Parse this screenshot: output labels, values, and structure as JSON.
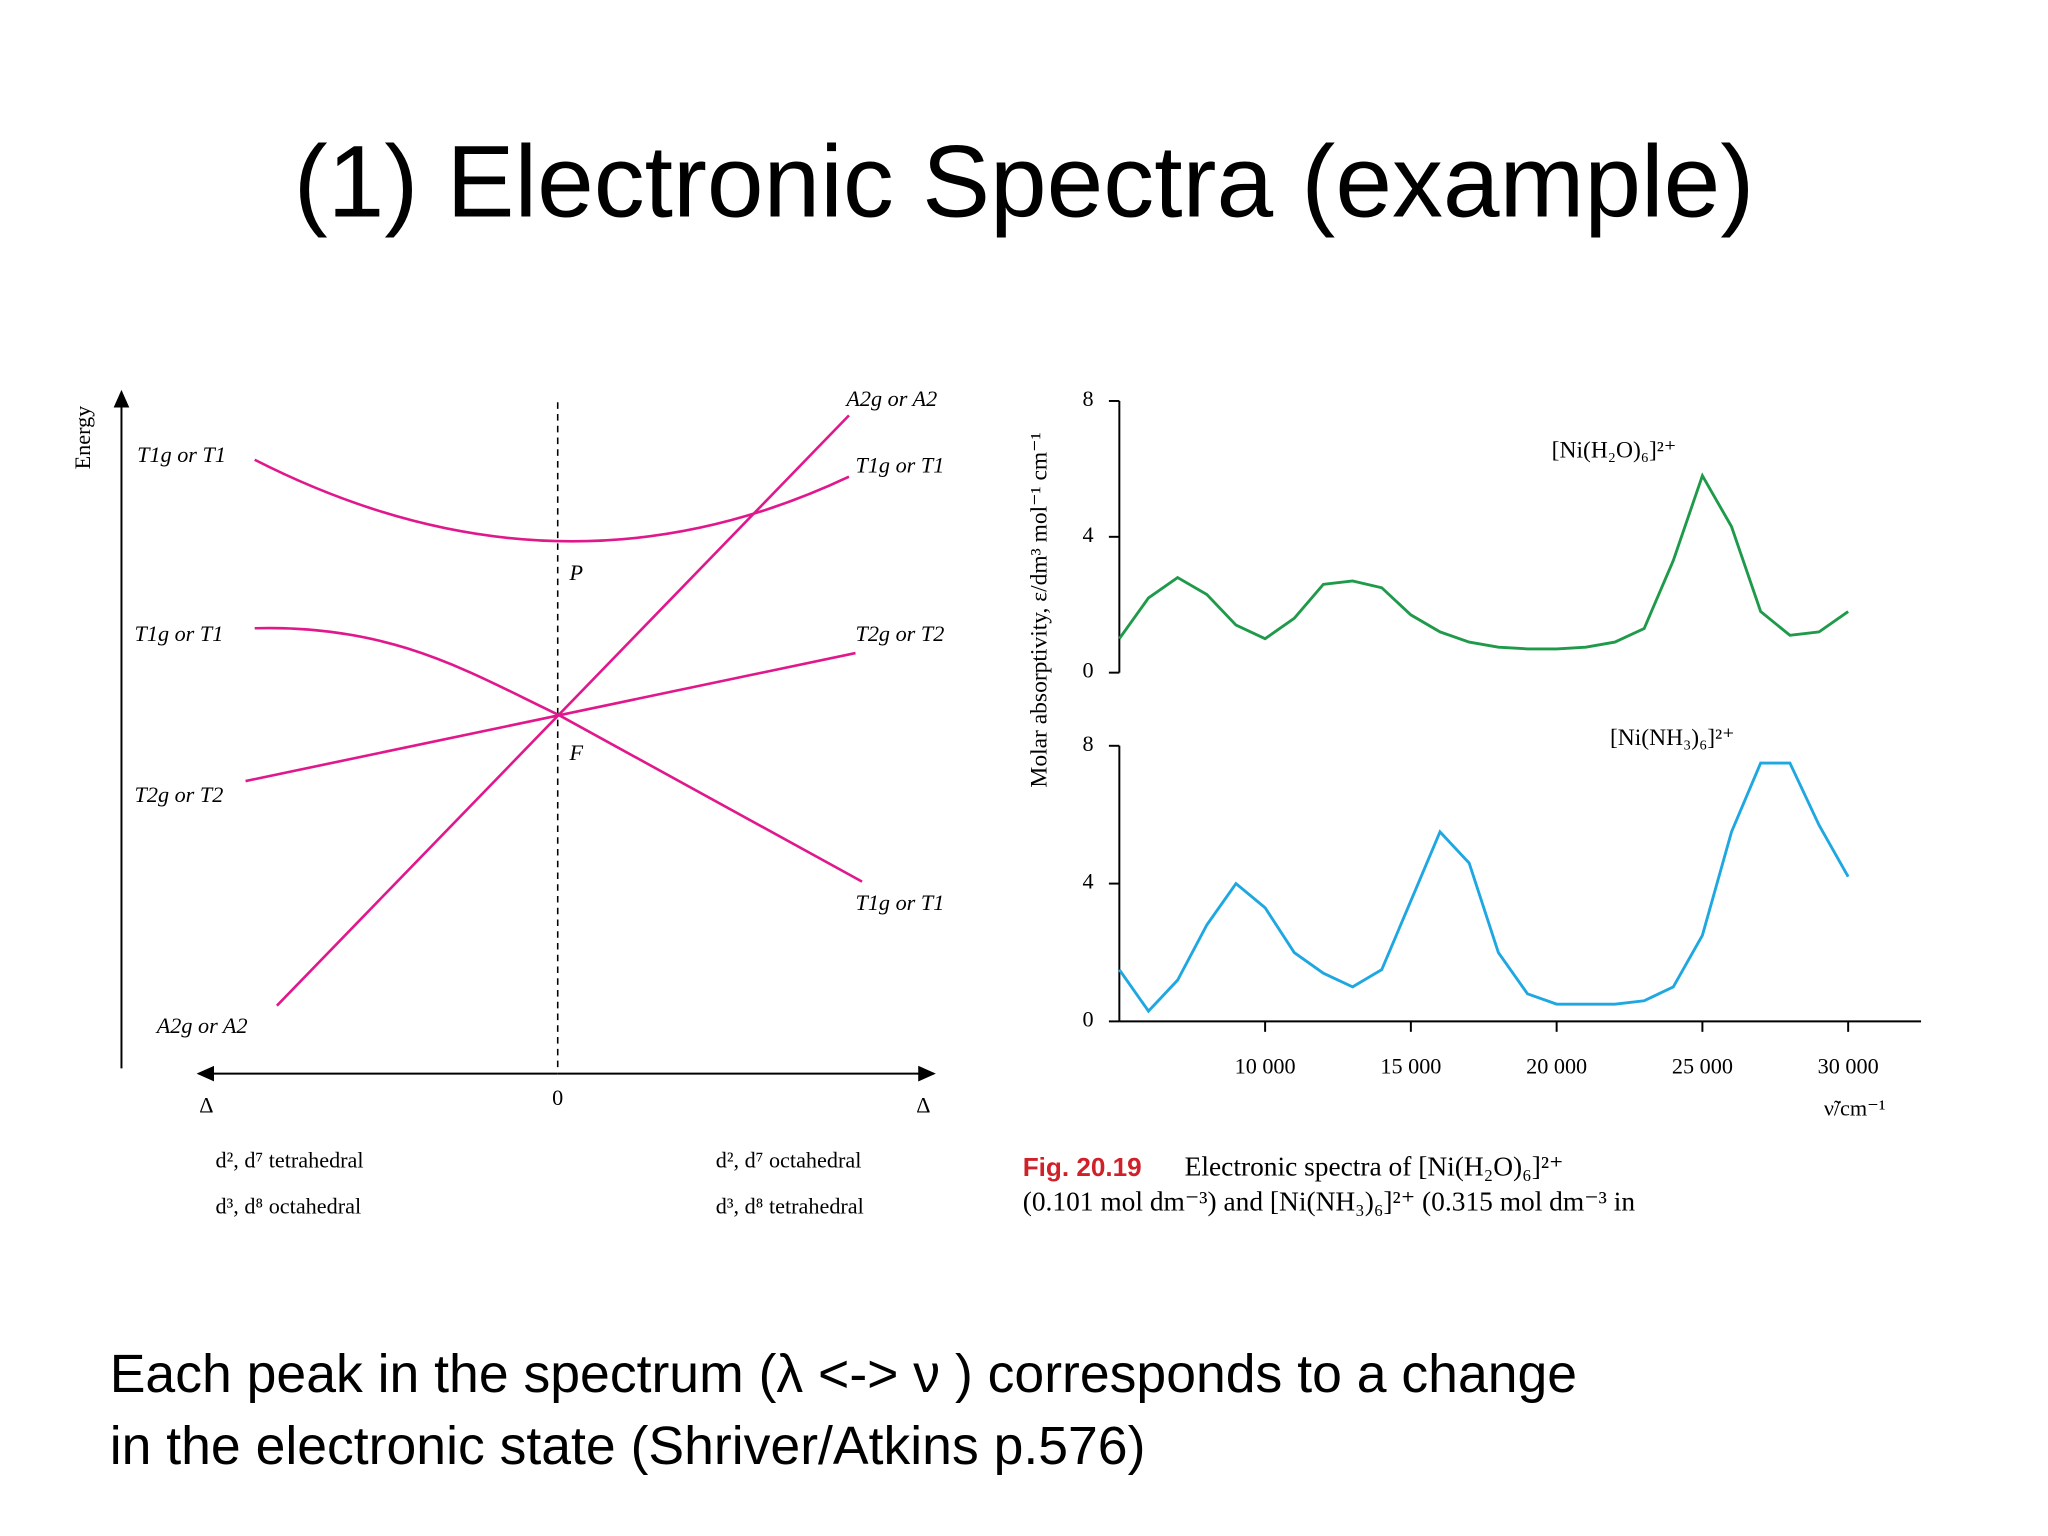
{
  "slide": {
    "title": "(1) Electronic Spectra (example)",
    "body": [
      "Each peak in the spectrum (λ  <-> ν ) corresponds to a change",
      "in the electronic state (Shriver/Atkins p.576)"
    ]
  },
  "orgel_diagram": {
    "y_label": "Energy",
    "left_labels": [
      "T1g or T1",
      "T1g or T1",
      "T2g or T2",
      "A2g or A2"
    ],
    "right_labels": [
      "A2g or A2",
      "T1g or T1",
      "T2g or T2",
      "T1g or T1"
    ],
    "terms": [
      "P",
      "F"
    ],
    "axis_labels": [
      "Δ",
      "0",
      "Δ"
    ],
    "left_cases": [
      "d², d⁷  tetrahedral",
      "d³, d⁸  octahedral"
    ],
    "right_cases": [
      "d², d⁷  octahedral",
      "d³, d⁸  tetrahedral"
    ]
  },
  "caption": {
    "label": "Fig. 20.19",
    "lines": [
      "Electronic spectra of [Ni(H₂O)₆]²⁺",
      "(0.101 mol dm⁻³) and [Ni(NH₃)₆]²⁺ (0.315 mol dm⁻³ in"
    ]
  },
  "chart_data": [
    {
      "type": "line",
      "y_label": "Molar absorptivity, ε/dm³ mol⁻¹ cm⁻¹",
      "x": [
        5000,
        6000,
        7000,
        8000,
        9000,
        10000,
        11000,
        12000,
        13000,
        14000,
        15000,
        16000,
        17000,
        18000,
        19000,
        20000,
        21000,
        22000,
        23000,
        24000,
        25000,
        26000,
        27000,
        28000,
        29000,
        30000
      ],
      "xlim": [
        5000,
        32500
      ],
      "ylim": [
        0,
        8
      ],
      "yticks": [
        0,
        4,
        8
      ],
      "series": [
        {
          "name": "[Ni(H₂O)₆]²⁺",
          "color": "#1f9a4a",
          "values": [
            1.0,
            2.2,
            2.8,
            2.3,
            1.4,
            1.0,
            1.6,
            2.6,
            2.7,
            2.5,
            1.7,
            1.2,
            0.9,
            0.75,
            0.7,
            0.7,
            0.75,
            0.9,
            1.3,
            3.3,
            5.8,
            4.3,
            1.8,
            1.1,
            1.2,
            1.8
          ]
        }
      ]
    },
    {
      "type": "line",
      "x_label": "ν̃/cm⁻¹",
      "x": [
        5000,
        6000,
        7000,
        8000,
        9000,
        10000,
        11000,
        12000,
        13000,
        14000,
        15000,
        16000,
        17000,
        18000,
        19000,
        20000,
        21000,
        22000,
        23000,
        24000,
        25000,
        26000,
        27000,
        28000,
        29000,
        30000
      ],
      "xlim": [
        5000,
        32500
      ],
      "ylim": [
        0,
        8
      ],
      "yticks": [
        0,
        4,
        8
      ],
      "xticks": [
        {
          "value": 10000,
          "label": "10 000"
        },
        {
          "value": 15000,
          "label": "15 000"
        },
        {
          "value": 20000,
          "label": "20 000"
        },
        {
          "value": 25000,
          "label": "25 000"
        },
        {
          "value": 30000,
          "label": "30 000"
        }
      ],
      "series": [
        {
          "name": "[Ni(NH₃)₆]²⁺",
          "color": "#1ea7e0",
          "values": [
            1.5,
            0.3,
            1.2,
            2.8,
            4.0,
            3.3,
            2.0,
            1.4,
            1.0,
            1.5,
            3.5,
            5.5,
            4.6,
            2.0,
            0.8,
            0.5,
            0.5,
            0.5,
            0.6,
            1.0,
            2.5,
            5.5,
            7.5,
            7.5,
            5.7,
            4.2
          ]
        }
      ]
    }
  ]
}
